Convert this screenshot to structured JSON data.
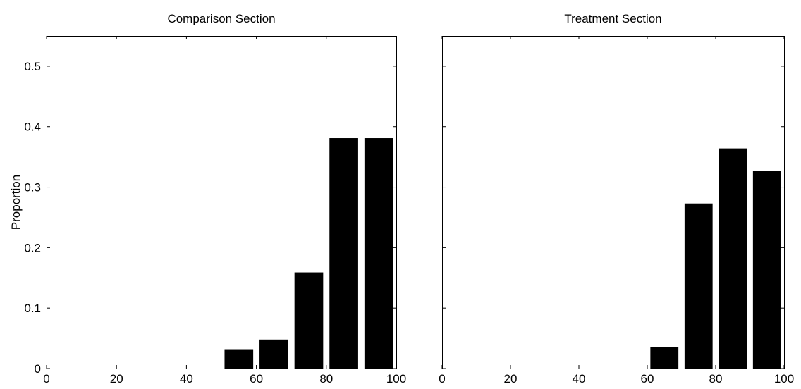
{
  "chart_data": [
    {
      "type": "bar",
      "title": "Comparison Section",
      "xlabel": "",
      "ylabel": "Proportion",
      "x": [
        5,
        15,
        25,
        35,
        45,
        55,
        65,
        75,
        85,
        95
      ],
      "values": [
        0,
        0,
        0,
        0,
        0,
        0.032,
        0.048,
        0.159,
        0.381,
        0.381
      ],
      "bar_width": 8.2,
      "xlim": [
        0,
        100
      ],
      "ylim": [
        0,
        0.55
      ],
      "xticks": [
        0,
        20,
        40,
        60,
        80,
        100
      ],
      "yticks": [
        0,
        0.1,
        0.2,
        0.3,
        0.4,
        0.5
      ],
      "xtick_labels": [
        "0",
        "20",
        "40",
        "60",
        "80",
        "100"
      ],
      "ytick_labels": [
        "0",
        "0.1",
        "0.2",
        "0.3",
        "0.4",
        "0.5"
      ],
      "bar_color": "#000000",
      "grid": false,
      "legend": "none"
    },
    {
      "type": "bar",
      "title": "Treatment Section",
      "xlabel": "",
      "ylabel": "",
      "x": [
        5,
        15,
        25,
        35,
        45,
        55,
        65,
        75,
        85,
        95
      ],
      "values": [
        0,
        0,
        0,
        0,
        0,
        0,
        0.036,
        0.273,
        0.364,
        0.327
      ],
      "bar_width": 8.2,
      "xlim": [
        0,
        100
      ],
      "ylim": [
        0,
        0.55
      ],
      "xticks": [
        0,
        20,
        40,
        60,
        80,
        100
      ],
      "yticks": [
        0,
        0.1,
        0.2,
        0.3,
        0.4,
        0.5
      ],
      "xtick_labels": [
        "0",
        "20",
        "40",
        "60",
        "80",
        "100"
      ],
      "ytick_labels": [],
      "bar_color": "#000000",
      "grid": false,
      "legend": "none"
    }
  ]
}
